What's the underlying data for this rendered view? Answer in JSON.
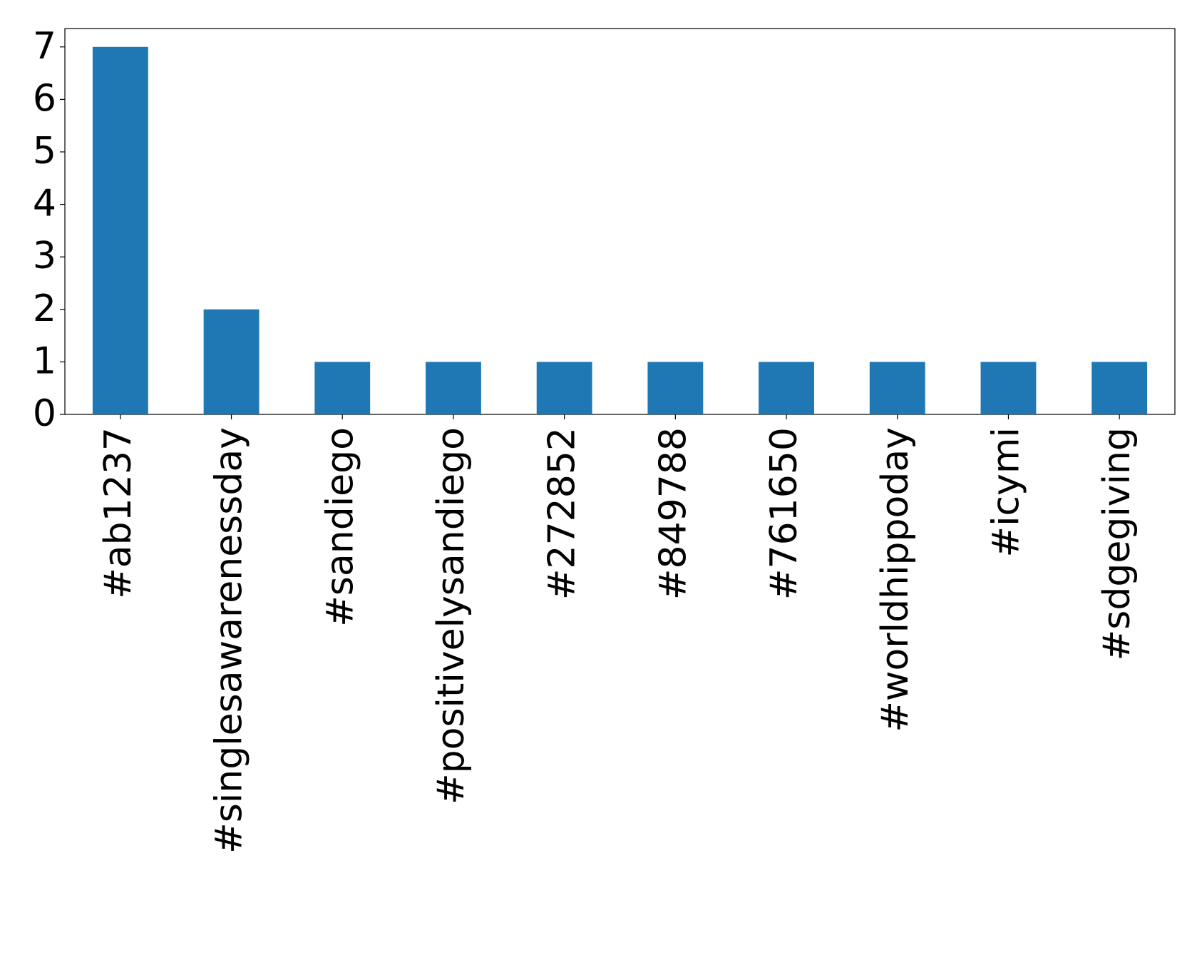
{
  "chart_data": {
    "type": "bar",
    "categories": [
      "#ab1237",
      "#singlesawarenessday",
      "#sandiego",
      "#positivelysandiego",
      "#272852",
      "#849788",
      "#761650",
      "#worldhippoday",
      "#icymi",
      "#sdgegiving"
    ],
    "values": [
      7,
      2,
      1,
      1,
      1,
      1,
      1,
      1,
      1,
      1
    ],
    "color": "#1f77b4",
    "ylim": [
      0,
      7.35
    ],
    "yticks": [
      0,
      1,
      2,
      3,
      4,
      5,
      6,
      7
    ],
    "grid": false
  }
}
